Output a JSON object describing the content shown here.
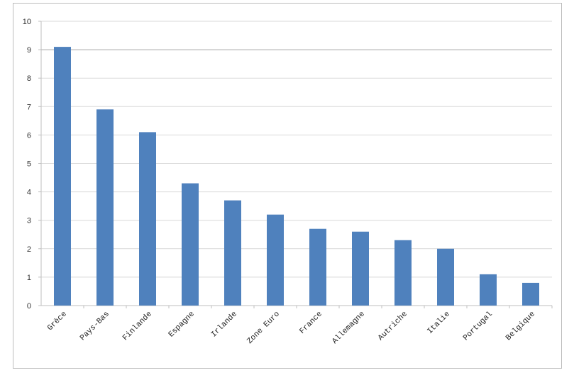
{
  "chart_data": {
    "type": "bar",
    "title": "",
    "xlabel": "",
    "ylabel": "",
    "categories": [
      "Grèce",
      "Pays-Bas",
      "Finlande",
      "Espagne",
      "Irlande",
      "Zone Euro",
      "France",
      "Allemagne",
      "Autriche",
      "Italie",
      "Portugal",
      "Belgique"
    ],
    "values": [
      9.1,
      6.9,
      6.1,
      4.3,
      3.7,
      3.2,
      2.7,
      2.6,
      2.3,
      2.0,
      1.1,
      0.8
    ],
    "ylim": [
      0,
      10
    ],
    "yticks": [
      "0",
      "1",
      "2",
      "3",
      "4",
      "5",
      "6",
      "7",
      "8",
      "9",
      "10"
    ],
    "grid": true,
    "legend": "none",
    "bar_color": "#4f81bd"
  }
}
